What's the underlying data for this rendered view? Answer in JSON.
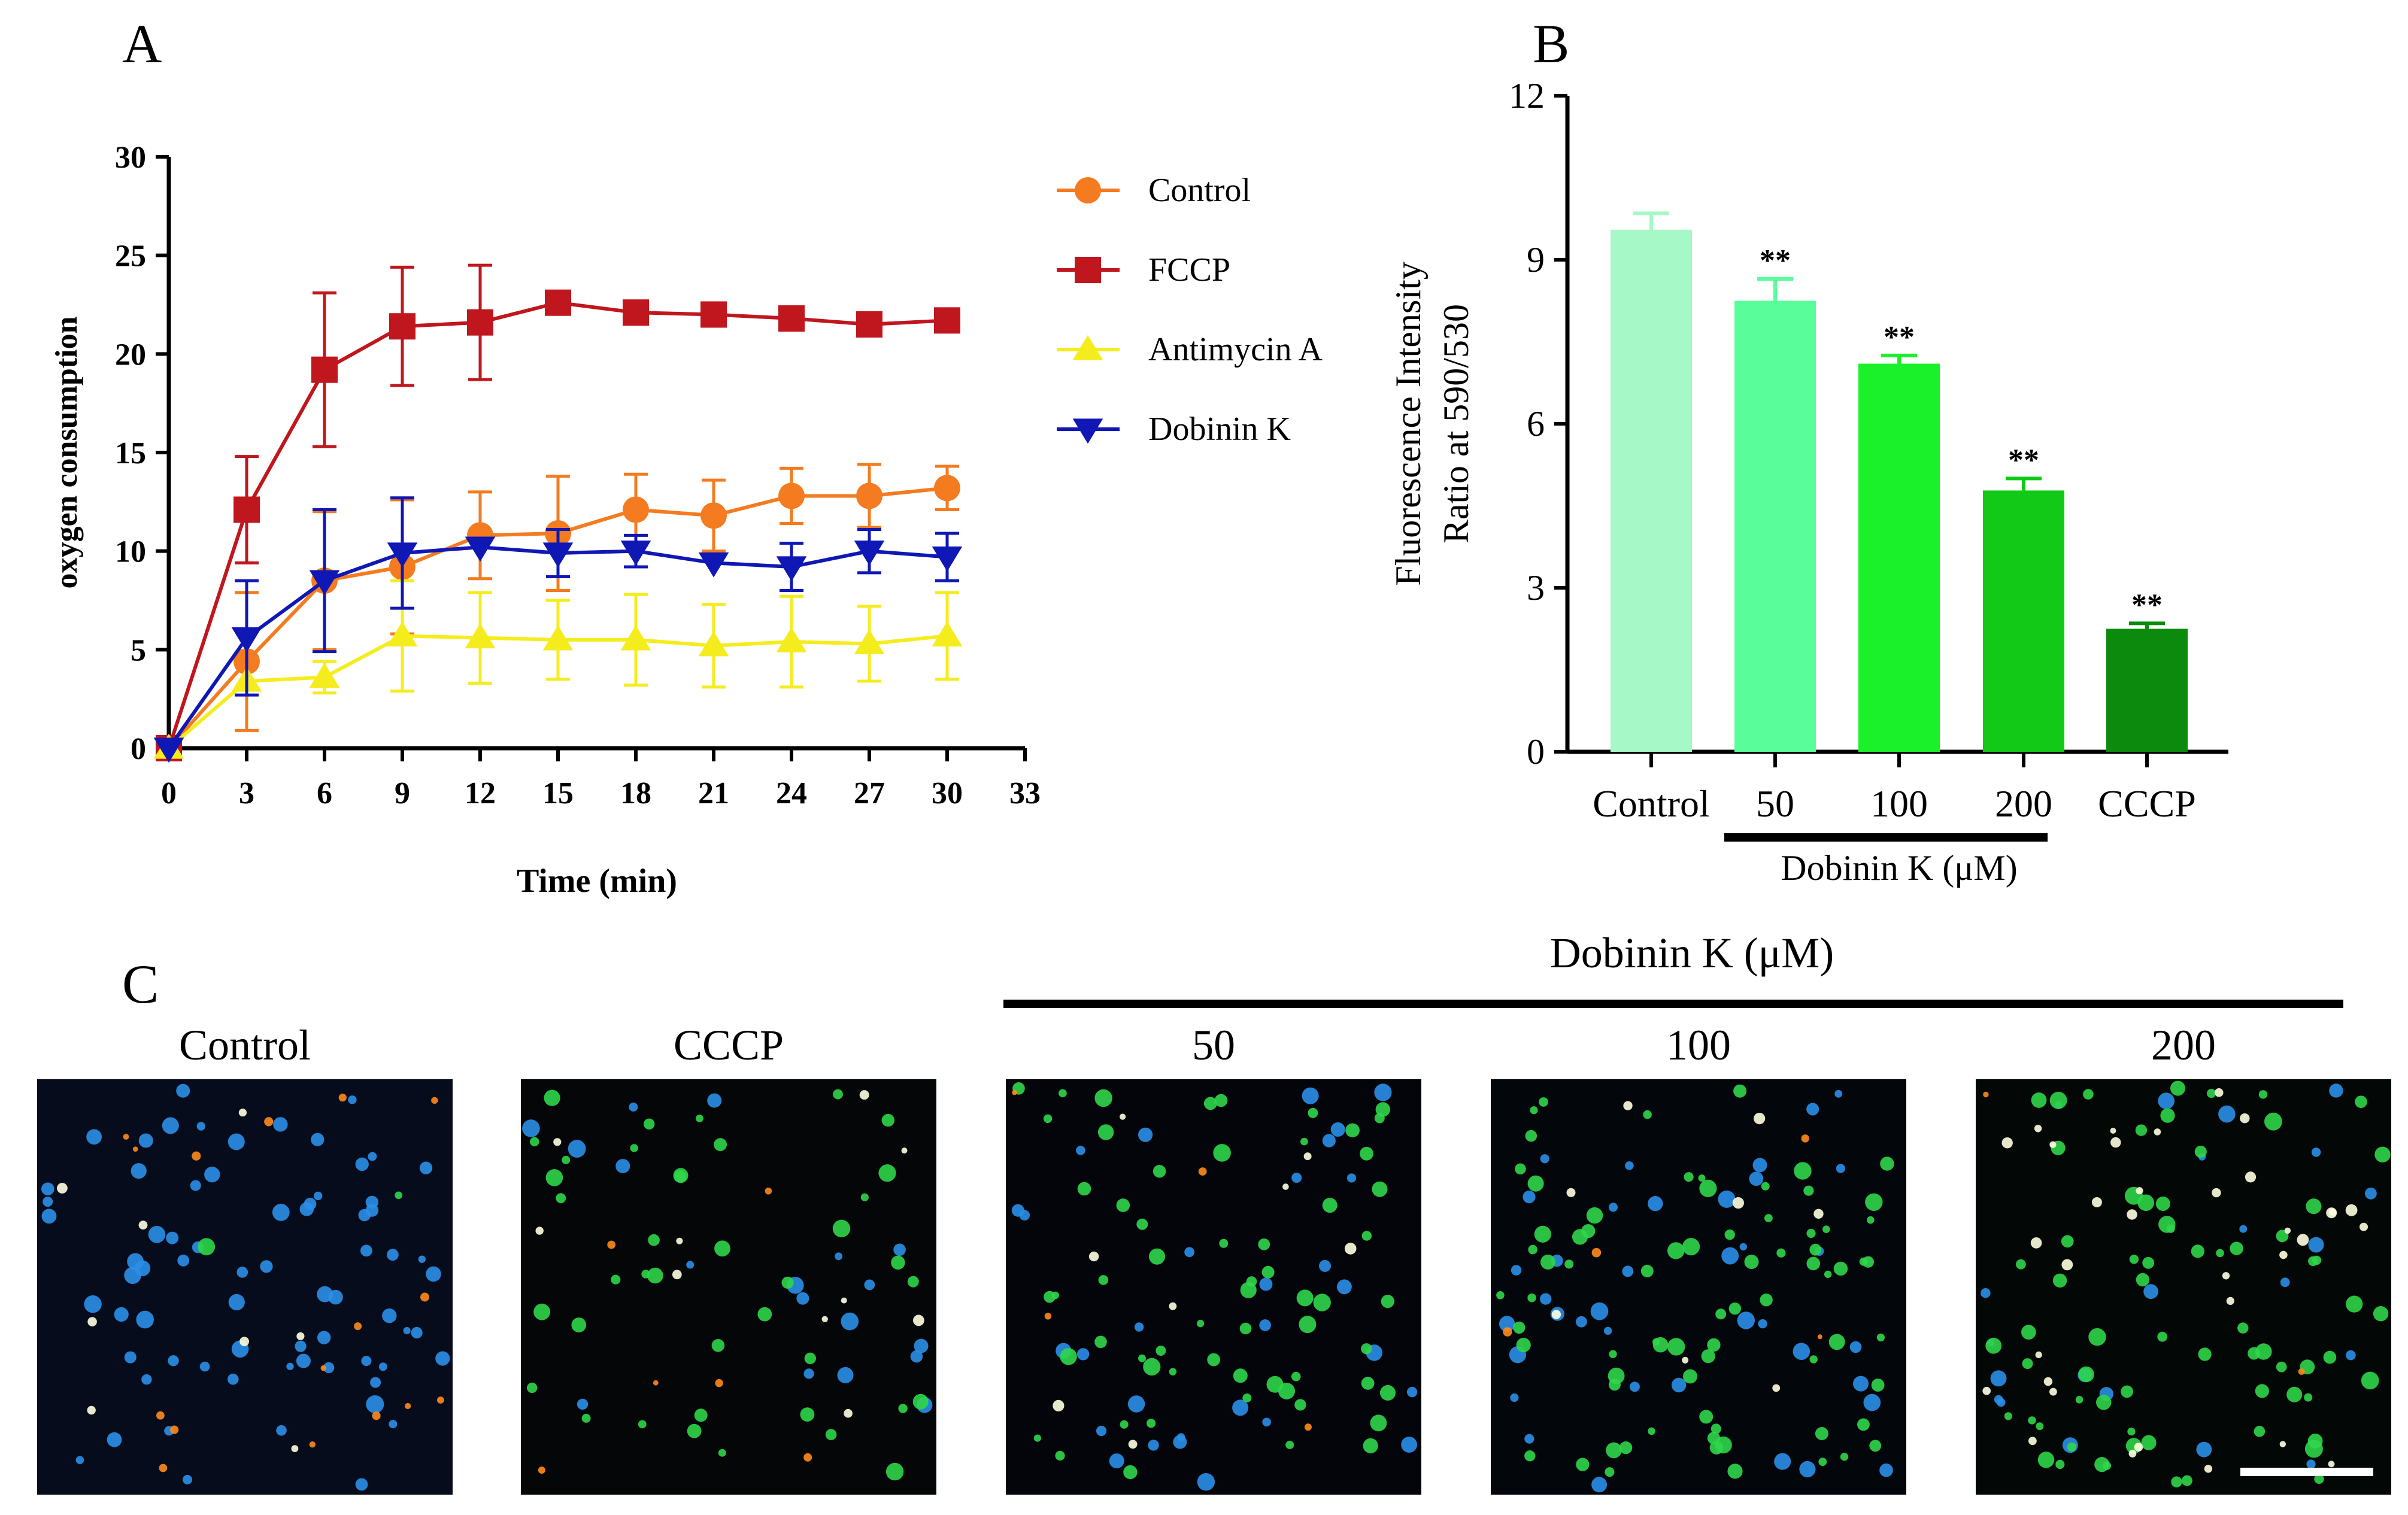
{
  "panels": {
    "a": "A",
    "b": "B",
    "c": "C"
  },
  "chart_data": [
    {
      "type": "line",
      "panel": "A",
      "title": "",
      "xlabel": "Time (min)",
      "ylabel": "oxygen consumption",
      "xlim": [
        0,
        33
      ],
      "ylim": [
        0,
        30
      ],
      "xticks": [
        0,
        3,
        6,
        9,
        12,
        15,
        18,
        21,
        24,
        27,
        30,
        33
      ],
      "yticks": [
        0,
        5,
        10,
        15,
        20,
        25,
        30
      ],
      "x": [
        0,
        3,
        6,
        9,
        12,
        15,
        18,
        21,
        24,
        27,
        30
      ],
      "legend_position": "right",
      "series": [
        {
          "name": "Control",
          "color": "#f47b20",
          "marker": "circle",
          "values": [
            0,
            4.4,
            8.5,
            9.2,
            10.8,
            10.9,
            12.1,
            11.8,
            12.8,
            12.8,
            13.2
          ],
          "errors": [
            0,
            3.5,
            3.5,
            3.4,
            2.2,
            2.9,
            1.8,
            1.8,
            1.4,
            1.6,
            1.1
          ]
        },
        {
          "name": "FCCP",
          "color": "#c0161d",
          "marker": "square",
          "values": [
            0,
            12.1,
            19.2,
            21.4,
            21.6,
            22.6,
            22.1,
            22.0,
            21.8,
            21.5,
            21.7
          ],
          "errors": [
            0,
            2.7,
            3.9,
            3.0,
            2.9,
            0,
            0,
            0,
            0,
            0,
            0
          ]
        },
        {
          "name": "Antimycin A",
          "color": "#f5ec1e",
          "marker": "triangle-up",
          "values": [
            0,
            3.4,
            3.6,
            5.7,
            5.6,
            5.5,
            5.5,
            5.2,
            5.4,
            5.3,
            5.7
          ],
          "errors": [
            0,
            0,
            0.8,
            2.8,
            2.3,
            2.0,
            2.3,
            2.1,
            2.3,
            1.9,
            2.2
          ]
        },
        {
          "name": "Dobinin K",
          "color": "#0f18b4",
          "marker": "triangle-down",
          "values": [
            0,
            5.6,
            8.5,
            9.9,
            10.2,
            9.9,
            10.0,
            9.4,
            9.2,
            10.0,
            9.7
          ],
          "errors": [
            0,
            2.9,
            3.6,
            2.8,
            0,
            1.2,
            0.8,
            0,
            1.2,
            1.1,
            1.2
          ]
        }
      ]
    },
    {
      "type": "bar",
      "panel": "B",
      "title": "",
      "xlabel": "",
      "ylabel_lines": [
        "Fluorescence Intensity",
        "Ratio at 590/530"
      ],
      "ylim": [
        0,
        12
      ],
      "yticks": [
        0,
        3,
        6,
        9,
        12
      ],
      "categories": [
        "Control",
        "50",
        "100",
        "200",
        "CCCP"
      ],
      "values": [
        9.55,
        8.25,
        7.1,
        4.78,
        2.25
      ],
      "errors": [
        0.3,
        0.4,
        0.15,
        0.22,
        0.1
      ],
      "annotations": [
        "",
        "**",
        "**",
        "**",
        "**"
      ],
      "colors": [
        "#a6f8c6",
        "#59fd9a",
        "#1bf12a",
        "#12c918",
        "#0b8a0e"
      ],
      "group_label": "Dobinin K (μM)",
      "group_members": [
        "50",
        "100",
        "200"
      ]
    }
  ],
  "microscopy": {
    "group_label": "Dobinin K (μM)",
    "panels": [
      {
        "label": "Control",
        "bg": "#060c1c"
      },
      {
        "label": "CCCP",
        "bg": "#040608"
      },
      {
        "label": "50",
        "bg": "#03050a"
      },
      {
        "label": "100",
        "bg": "#03060a"
      },
      {
        "label": "200",
        "bg": "#030806"
      }
    ],
    "colors": {
      "blue": "#2b8fe8",
      "green": "#2fd64a",
      "orange": "#ff8a1c",
      "white": "#ffffe0"
    },
    "scale_bar_color": "#ffffff"
  }
}
